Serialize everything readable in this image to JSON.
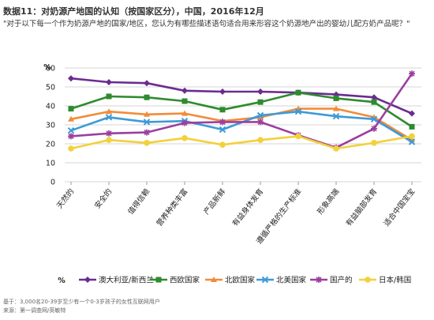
{
  "page": {
    "title": "数据11：对奶源产地国的认知（按国家区分），中国，2016年12月",
    "subtitle": "\"对于以下每一个作为奶源产地的国家/地区，您认为有哪些描述语句适合用来形容这个奶源地产出的婴幼儿配方奶产品呢？\"",
    "footer": [
      "基于：3,000名20-39岁至少有一个0-3岁孩子的女性互联网用户",
      "来源：第一调查网/英敏特"
    ]
  },
  "chart_data": {
    "type": "line",
    "ylabel": "%",
    "ylim": [
      0,
      60
    ],
    "yticks": [
      0,
      10,
      20,
      30,
      40,
      50,
      60
    ],
    "grid": true,
    "legend_position": "bottom",
    "legend_label": "%",
    "categories": [
      "天然的",
      "安全的",
      "值得信赖",
      "营养种类丰富",
      "产品新鲜",
      "有益身体发育",
      "遵循严格的生产标准",
      "形象高端",
      "有益脑部发育",
      "适合中国宝宝"
    ],
    "series": [
      {
        "name": "澳大利亚/新西兰",
        "color": "#6a2c91",
        "marker": "diamond",
        "values": [
          54.5,
          52.5,
          52,
          48,
          47.5,
          47.5,
          47,
          46,
          44.5,
          36
        ]
      },
      {
        "name": "西欧国家",
        "color": "#2e8b2e",
        "marker": "square",
        "values": [
          38.5,
          45,
          44.5,
          42.5,
          38,
          42,
          47,
          44,
          42,
          29
        ]
      },
      {
        "name": "北欧国家",
        "color": "#f28c38",
        "marker": "triangle",
        "values": [
          33,
          37,
          35.5,
          36,
          32,
          34,
          38.5,
          38.5,
          34,
          22
        ]
      },
      {
        "name": "北美国家",
        "color": "#3d9ad8",
        "marker": "x",
        "values": [
          27,
          34,
          31.5,
          32,
          27.5,
          35,
          37,
          34.5,
          33,
          21
        ]
      },
      {
        "name": "国产的",
        "color": "#9b3fa0",
        "marker": "star",
        "values": [
          24,
          25.5,
          26,
          31,
          31.5,
          31.5,
          24.5,
          18,
          28,
          57
        ]
      },
      {
        "name": "日本/韩国",
        "color": "#f2d13a",
        "marker": "circle",
        "values": [
          17.5,
          22,
          20.5,
          23,
          19.5,
          22,
          24,
          17.5,
          20.5,
          24
        ]
      }
    ]
  }
}
